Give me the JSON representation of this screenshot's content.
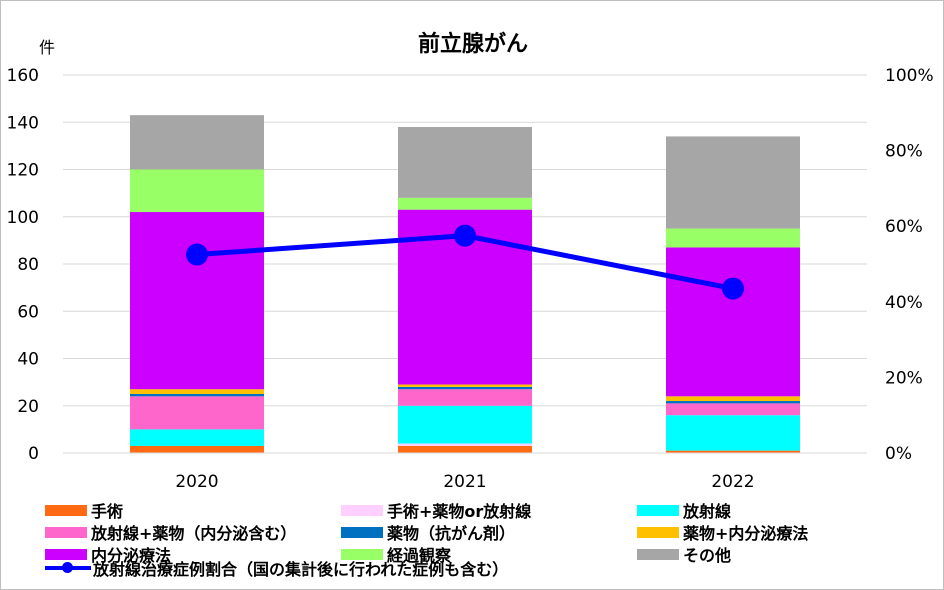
{
  "chart_data": {
    "type": "bar",
    "stacked": true,
    "title": "前立腺がん",
    "y_unit": "件",
    "categories": [
      "2020",
      "2021",
      "2022"
    ],
    "ylim": [
      0,
      160
    ],
    "yticks": [
      "0",
      "20",
      "40",
      "60",
      "80",
      "100",
      "120",
      "140",
      "160"
    ],
    "y2lim": [
      0,
      100
    ],
    "y2ticks": [
      "0%",
      "20%",
      "40%",
      "60%",
      "80%",
      "100%"
    ],
    "grid": true,
    "legend_position": "bottom",
    "series": [
      {
        "name": "手術",
        "color": "#ff6a13",
        "values": [
          3,
          3,
          1
        ]
      },
      {
        "name": "手術+薬物or放射線",
        "color": "#ffd0ff",
        "values": [
          0,
          1,
          0
        ]
      },
      {
        "name": "放射線",
        "color": "#00ffff",
        "values": [
          7,
          16,
          15
        ]
      },
      {
        "name": "放射線+薬物（内分泌含む）",
        "color": "#ff66cc",
        "values": [
          14,
          7,
          5
        ]
      },
      {
        "name": "薬物（抗がん剤）",
        "color": "#0070c0",
        "values": [
          1,
          1,
          1
        ]
      },
      {
        "name": "薬物+内分泌療法",
        "color": "#ffc000",
        "values": [
          2,
          1,
          2
        ]
      },
      {
        "name": "内分泌療法",
        "color": "#cc00ff",
        "values": [
          75,
          74,
          63
        ]
      },
      {
        "name": "経過観察",
        "color": "#99ff66",
        "values": [
          18,
          5,
          8
        ]
      },
      {
        "name": "その他",
        "color": "#a6a6a6",
        "values": [
          23,
          30,
          39
        ]
      }
    ],
    "line_series": {
      "name": "放射線治療症例割合（国の集計後に行われた症例も含む）",
      "color": "#0000ff",
      "axis": "right",
      "values": [
        52.5,
        57.5,
        43.5
      ]
    }
  }
}
